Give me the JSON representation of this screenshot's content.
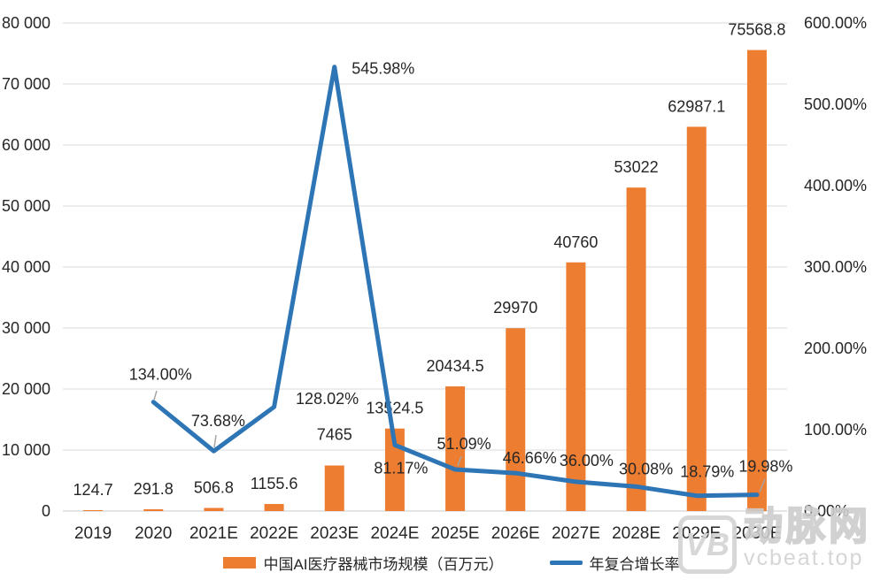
{
  "chart_data": {
    "type": "bar",
    "subtype": "bar+line combo, dual axis",
    "categories": [
      "2019",
      "2020",
      "2021E",
      "2022E",
      "2023E",
      "2024E",
      "2025E",
      "2026E",
      "2027E",
      "2028E",
      "2029E",
      "2030E"
    ],
    "series": [
      {
        "name": "中国AI医疗器械市场规模（百万元）",
        "type": "bar",
        "axis": "left",
        "color": "#ED7D31",
        "values": [
          124.7,
          291.8,
          506.8,
          1155.6,
          7465,
          13524.5,
          20434.5,
          29970,
          40760,
          53022,
          62987.1,
          75568.8
        ],
        "labels": [
          "124.7",
          "291.8",
          "506.8",
          "1155.6",
          "7465",
          "13524.5",
          "20434.5",
          "29970",
          "40760",
          "53022",
          "62987.1",
          "75568.8"
        ]
      },
      {
        "name": "年复合增长率",
        "type": "line",
        "axis": "right",
        "color": "#2E75B6",
        "x_start_index": 1,
        "values": [
          134.0,
          73.68,
          128.02,
          545.98,
          81.17,
          51.09,
          46.66,
          36.0,
          30.08,
          18.79,
          19.98
        ],
        "labels": [
          "134.00%",
          "73.68%",
          "128.02%",
          "545.98%",
          "81.17%",
          "51.09%",
          "46.66%",
          "36.00%",
          "30.08%",
          "18.79%",
          "19.98%"
        ]
      }
    ],
    "left_axis": {
      "min": 0,
      "max": 80000,
      "step": 10000,
      "tick_labels": [
        "0",
        "10 000",
        "20 000",
        "30 000",
        "40 000",
        "50 000",
        "60 000",
        "70 000",
        "80 000"
      ]
    },
    "right_axis": {
      "min": 0,
      "max": 600,
      "step": 100,
      "tick_labels": [
        "0.00%",
        "100.00%",
        "200.00%",
        "300.00%",
        "400.00%",
        "500.00%",
        "600.00%"
      ]
    },
    "grid": true,
    "legend_position": "bottom",
    "title": ""
  },
  "colors": {
    "bar": "#ED7D31",
    "line": "#2E75B6",
    "grid": "#D9D9D9",
    "axis": "#C8C8C8",
    "text": "#262626",
    "leader": "#A6A6A6",
    "watermark": "#D2D2D2"
  },
  "watermark": {
    "logo_text": "VB",
    "brand": "动脉网",
    "site": "vcbeat.top"
  }
}
